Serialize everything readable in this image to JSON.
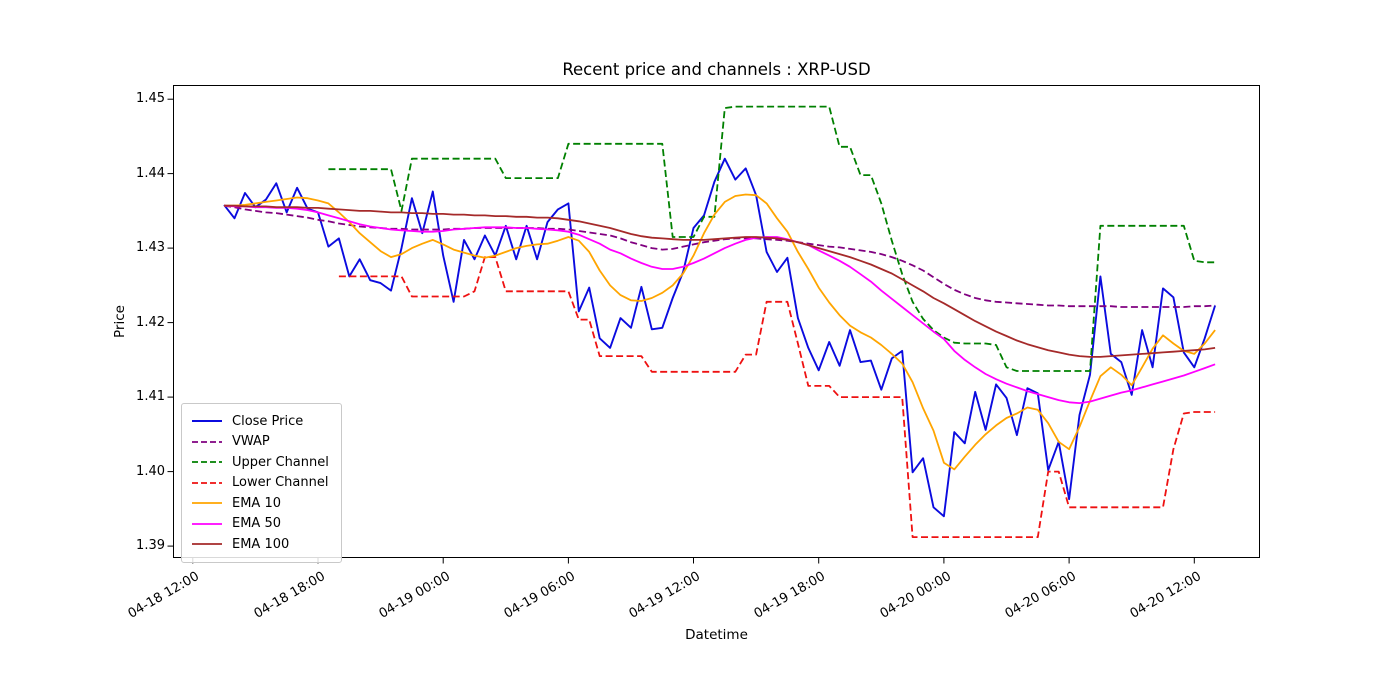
{
  "chart_data": {
    "type": "line",
    "title": "Recent price and channels : XRP-USD",
    "xlabel": "Datetime",
    "ylabel": "Price",
    "grid": false,
    "legend_position": "lower left",
    "ylim": [
      1.3884,
      1.4519
    ],
    "xlim_hours": [
      -0.95,
      51.15
    ],
    "x_unit": "hours since 04-18 12:00",
    "x_start_hours": 1.5,
    "x_step_hours": 0.5,
    "n_points": 96,
    "yticks": [
      {
        "value": 1.39,
        "label": "1.39"
      },
      {
        "value": 1.4,
        "label": "1.40"
      },
      {
        "value": 1.41,
        "label": "1.41"
      },
      {
        "value": 1.42,
        "label": "1.42"
      },
      {
        "value": 1.43,
        "label": "1.43"
      },
      {
        "value": 1.44,
        "label": "1.44"
      },
      {
        "value": 1.45,
        "label": "1.45"
      }
    ],
    "xticks": [
      {
        "hours": 0,
        "label": "04-18 12:00"
      },
      {
        "hours": 6,
        "label": "04-18 18:00"
      },
      {
        "hours": 12,
        "label": "04-19 00:00"
      },
      {
        "hours": 18,
        "label": "04-19 06:00"
      },
      {
        "hours": 24,
        "label": "04-19 12:00"
      },
      {
        "hours": 30,
        "label": "04-19 18:00"
      },
      {
        "hours": 36,
        "label": "04-20 00:00"
      },
      {
        "hours": 42,
        "label": "04-20 06:00"
      },
      {
        "hours": 48,
        "label": "04-20 12:00"
      }
    ],
    "series": [
      {
        "name": "Close Price",
        "color": "#0b0bdf",
        "dash": null,
        "width": 1.9,
        "values": [
          1.4358,
          1.434,
          1.4374,
          1.4355,
          1.4365,
          1.4387,
          1.4348,
          1.4381,
          1.4353,
          1.4348,
          1.4302,
          1.4313,
          1.4262,
          1.4285,
          1.4257,
          1.4253,
          1.4243,
          1.43,
          1.4367,
          1.432,
          1.4376,
          1.429,
          1.4228,
          1.4311,
          1.4285,
          1.4317,
          1.429,
          1.433,
          1.4285,
          1.433,
          1.4285,
          1.4335,
          1.4352,
          1.436,
          1.4215,
          1.4247,
          1.4179,
          1.4166,
          1.4206,
          1.4193,
          1.4248,
          1.4191,
          1.4193,
          1.4233,
          1.4268,
          1.4327,
          1.4344,
          1.4389,
          1.442,
          1.4392,
          1.4407,
          1.4371,
          1.4295,
          1.4268,
          1.4287,
          1.4206,
          1.4166,
          1.4136,
          1.4174,
          1.4142,
          1.419,
          1.4147,
          1.4149,
          1.411,
          1.4152,
          1.4162,
          1.3999,
          1.4018,
          1.3952,
          1.394,
          1.4053,
          1.4038,
          1.4107,
          1.4056,
          1.4117,
          1.4099,
          1.4049,
          1.4112,
          1.4105,
          1.4002,
          1.404,
          1.3963,
          1.4076,
          1.413,
          1.4262,
          1.4158,
          1.4147,
          1.4103,
          1.419,
          1.414,
          1.4246,
          1.4234,
          1.416,
          1.414,
          1.4179,
          1.4223
        ]
      },
      {
        "name": "VWAP",
        "color": "#800080",
        "dash": "7,3.5",
        "width": 1.8,
        "values": [
          1.4357,
          1.4355,
          1.4352,
          1.435,
          1.4348,
          1.4347,
          1.4345,
          1.4343,
          1.4341,
          1.4338,
          1.4336,
          1.4333,
          1.4331,
          1.4329,
          1.4328,
          1.4327,
          1.4326,
          1.4326,
          1.4325,
          1.4325,
          1.4325,
          1.4325,
          1.4326,
          1.4326,
          1.4327,
          1.4327,
          1.4327,
          1.4327,
          1.4327,
          1.4327,
          1.4327,
          1.4326,
          1.4326,
          1.4325,
          1.4323,
          1.4321,
          1.4319,
          1.4317,
          1.4313,
          1.4308,
          1.4304,
          1.43,
          1.4298,
          1.4299,
          1.4302,
          1.4305,
          1.4308,
          1.431,
          1.4312,
          1.4313,
          1.4313,
          1.4313,
          1.4312,
          1.4311,
          1.431,
          1.4308,
          1.4306,
          1.4304,
          1.4302,
          1.4301,
          1.4299,
          1.4297,
          1.4295,
          1.4292,
          1.4288,
          1.4283,
          1.4277,
          1.427,
          1.4261,
          1.4252,
          1.4244,
          1.4238,
          1.4233,
          1.423,
          1.4228,
          1.4227,
          1.4226,
          1.4225,
          1.4224,
          1.4223,
          1.4223,
          1.4222,
          1.4222,
          1.4222,
          1.4222,
          1.4222,
          1.4221,
          1.4221,
          1.4221,
          1.4221,
          1.4221,
          1.4221,
          1.4221,
          1.4222,
          1.4222,
          1.4223
        ]
      },
      {
        "name": "Upper Channel",
        "color": "#008000",
        "dash": "7,3.5",
        "width": 1.8,
        "values": [
          null,
          null,
          null,
          null,
          null,
          null,
          null,
          null,
          null,
          null,
          1.4406,
          1.4406,
          1.4406,
          1.4406,
          1.4406,
          1.4406,
          1.4406,
          1.435,
          1.442,
          1.442,
          1.442,
          1.442,
          1.442,
          1.442,
          1.442,
          1.442,
          1.442,
          1.4394,
          1.4394,
          1.4394,
          1.4394,
          1.4394,
          1.4394,
          1.444,
          1.444,
          1.444,
          1.444,
          1.444,
          1.444,
          1.444,
          1.444,
          1.444,
          1.444,
          1.4315,
          1.4315,
          1.4315,
          1.4342,
          1.4342,
          1.4488,
          1.449,
          1.449,
          1.449,
          1.449,
          1.449,
          1.449,
          1.449,
          1.449,
          1.449,
          1.449,
          1.4436,
          1.4436,
          1.4398,
          1.4398,
          1.436,
          1.431,
          1.4265,
          1.4228,
          1.4205,
          1.419,
          1.418,
          1.4173,
          1.4172,
          1.4172,
          1.4172,
          1.417,
          1.414,
          1.4135,
          1.4135,
          1.4135,
          1.4135,
          1.4135,
          1.4135,
          1.4135,
          1.4135,
          1.433,
          1.433,
          1.433,
          1.433,
          1.433,
          1.433,
          1.433,
          1.433,
          1.433,
          1.4283,
          1.4281,
          1.4281
        ]
      },
      {
        "name": "Lower Channel",
        "color": "#ee1111",
        "dash": "7,3.5",
        "width": 1.8,
        "values": [
          null,
          null,
          null,
          null,
          null,
          null,
          null,
          null,
          null,
          null,
          null,
          1.4262,
          1.4262,
          1.4262,
          1.4262,
          1.4262,
          1.4262,
          1.4262,
          1.4235,
          1.4235,
          1.4235,
          1.4235,
          1.4235,
          1.4235,
          1.4242,
          1.4288,
          1.4288,
          1.4242,
          1.4242,
          1.4242,
          1.4242,
          1.4242,
          1.4242,
          1.4242,
          1.4204,
          1.4204,
          1.4155,
          1.4155,
          1.4155,
          1.4155,
          1.4155,
          1.4134,
          1.4134,
          1.4134,
          1.4134,
          1.4134,
          1.4134,
          1.4134,
          1.4134,
          1.4134,
          1.4157,
          1.4157,
          1.4228,
          1.4228,
          1.4228,
          1.4172,
          1.4115,
          1.4115,
          1.4115,
          1.41,
          1.41,
          1.41,
          1.41,
          1.41,
          1.41,
          1.41,
          1.3912,
          1.3912,
          1.3912,
          1.3912,
          1.3912,
          1.3912,
          1.3912,
          1.3912,
          1.3912,
          1.3912,
          1.3912,
          1.3912,
          1.3912,
          1.4,
          1.4,
          1.3952,
          1.3952,
          1.3952,
          1.3952,
          1.3952,
          1.3952,
          1.3952,
          1.3952,
          1.3952,
          1.3952,
          1.403,
          1.4078,
          1.408,
          1.408,
          1.408
        ]
      },
      {
        "name": "EMA 10",
        "color": "#ffa500",
        "dash": null,
        "width": 1.8,
        "values": [
          1.4357,
          1.4357,
          1.4358,
          1.436,
          1.4362,
          1.4364,
          1.4366,
          1.4368,
          1.4367,
          1.4364,
          1.436,
          1.4348,
          1.4335,
          1.432,
          1.4308,
          1.4296,
          1.4288,
          1.4292,
          1.43,
          1.4306,
          1.4311,
          1.4305,
          1.4298,
          1.4294,
          1.429,
          1.4287,
          1.429,
          1.4295,
          1.43,
          1.4303,
          1.4305,
          1.4306,
          1.431,
          1.4315,
          1.431,
          1.4295,
          1.427,
          1.425,
          1.4237,
          1.423,
          1.4229,
          1.4233,
          1.424,
          1.425,
          1.4266,
          1.429,
          1.432,
          1.4345,
          1.4362,
          1.437,
          1.4372,
          1.4371,
          1.436,
          1.434,
          1.4322,
          1.4295,
          1.4272,
          1.4247,
          1.4227,
          1.421,
          1.4196,
          1.4187,
          1.418,
          1.417,
          1.4158,
          1.4145,
          1.412,
          1.4085,
          1.4055,
          1.4012,
          1.4003,
          1.402,
          1.4036,
          1.405,
          1.4062,
          1.4072,
          1.4078,
          1.4086,
          1.4083,
          1.4065,
          1.404,
          1.403,
          1.406,
          1.4095,
          1.4128,
          1.414,
          1.413,
          1.4116,
          1.414,
          1.4165,
          1.4183,
          1.4172,
          1.4162,
          1.4158,
          1.4172,
          1.419
        ]
      },
      {
        "name": "EMA 50",
        "color": "#ff00ff",
        "dash": null,
        "width": 1.8,
        "values": [
          1.4357,
          1.4356,
          1.4356,
          1.4355,
          1.4355,
          1.4354,
          1.4354,
          1.4353,
          1.4351,
          1.4348,
          1.4344,
          1.434,
          1.4336,
          1.4332,
          1.4329,
          1.4327,
          1.4325,
          1.4324,
          1.4323,
          1.4322,
          1.4322,
          1.4323,
          1.4325,
          1.4326,
          1.4327,
          1.4328,
          1.4328,
          1.4328,
          1.4327,
          1.4327,
          1.4326,
          1.4325,
          1.4324,
          1.4322,
          1.4318,
          1.4312,
          1.4306,
          1.4298,
          1.4293,
          1.4286,
          1.428,
          1.4275,
          1.4272,
          1.4272,
          1.4275,
          1.428,
          1.4286,
          1.4293,
          1.43,
          1.4306,
          1.4311,
          1.4314,
          1.4315,
          1.4315,
          1.4312,
          1.4308,
          1.4304,
          1.4297,
          1.429,
          1.4283,
          1.4275,
          1.4265,
          1.4255,
          1.4243,
          1.4232,
          1.4221,
          1.421,
          1.4199,
          1.4188,
          1.4178,
          1.4162,
          1.415,
          1.414,
          1.4131,
          1.4124,
          1.4118,
          1.4113,
          1.4108,
          1.4104,
          1.41,
          1.4096,
          1.4093,
          1.4092,
          1.4094,
          1.4098,
          1.4102,
          1.4106,
          1.4109,
          1.4113,
          1.4117,
          1.4121,
          1.4125,
          1.4129,
          1.4134,
          1.4139,
          1.4144
        ]
      },
      {
        "name": "EMA 100",
        "color": "#a52a2a",
        "dash": null,
        "width": 1.8,
        "values": [
          1.4357,
          1.4357,
          1.4356,
          1.4356,
          1.4356,
          1.4355,
          1.4355,
          1.4355,
          1.4354,
          1.4354,
          1.4353,
          1.4352,
          1.4351,
          1.435,
          1.435,
          1.4349,
          1.4348,
          1.4348,
          1.4347,
          1.4347,
          1.4346,
          1.4346,
          1.4345,
          1.4345,
          1.4344,
          1.4344,
          1.4343,
          1.4343,
          1.4342,
          1.4342,
          1.4341,
          1.4341,
          1.434,
          1.4338,
          1.4336,
          1.4333,
          1.433,
          1.4327,
          1.4323,
          1.4319,
          1.4316,
          1.4314,
          1.4313,
          1.4312,
          1.4311,
          1.4311,
          1.4311,
          1.4312,
          1.4313,
          1.4314,
          1.4315,
          1.4315,
          1.4314,
          1.4313,
          1.4311,
          1.4308,
          1.4304,
          1.43,
          1.4296,
          1.4292,
          1.4288,
          1.4283,
          1.4278,
          1.4272,
          1.4266,
          1.4258,
          1.425,
          1.4242,
          1.4233,
          1.4226,
          1.4218,
          1.421,
          1.4202,
          1.4195,
          1.4188,
          1.4182,
          1.4176,
          1.4171,
          1.4167,
          1.4163,
          1.416,
          1.4157,
          1.4155,
          1.4154,
          1.4154,
          1.4155,
          1.4156,
          1.4157,
          1.4158,
          1.4159,
          1.416,
          1.4161,
          1.4162,
          1.4163,
          1.4164,
          1.4166
        ]
      }
    ]
  }
}
